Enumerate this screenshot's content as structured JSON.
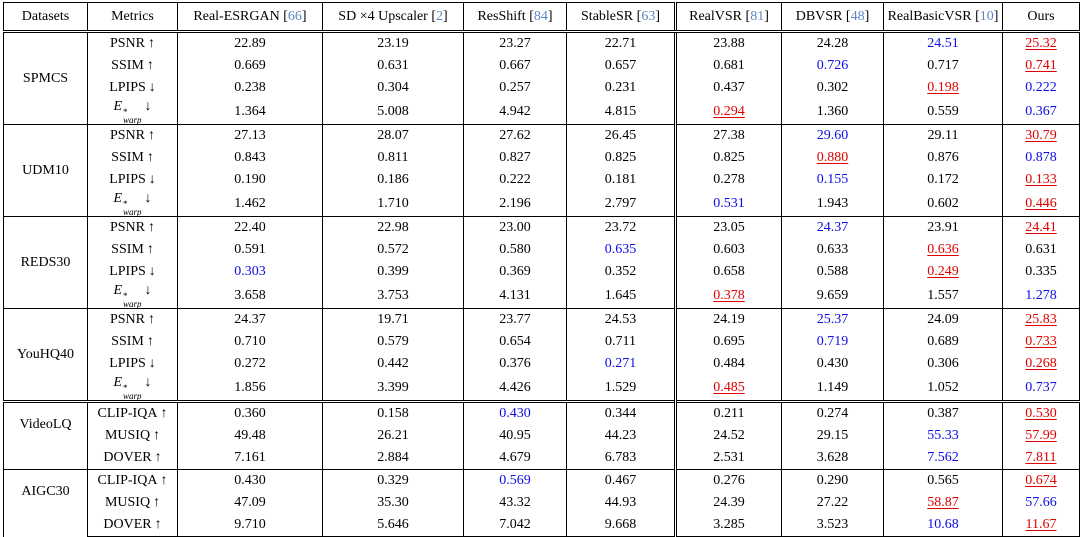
{
  "colors": {
    "best": "#e10000",
    "second": "#0d0de8",
    "cite": "#5c87c5",
    "text": "#000000",
    "border": "#000000"
  },
  "header": {
    "datasets_label": "Datasets",
    "metrics_label": "Metrics",
    "methods": [
      {
        "name": "Real-ESRGAN",
        "cite": "66"
      },
      {
        "name": "SD ×4 Upscaler",
        "cite": "2"
      },
      {
        "name": "ResShift",
        "cite": "84"
      },
      {
        "name": "StableSR",
        "cite": "63"
      },
      {
        "name": "RealVSR",
        "cite": "81"
      },
      {
        "name": "DBVSR",
        "cite": "48"
      },
      {
        "name": "RealBasicVSR",
        "cite": "10"
      },
      {
        "name": "Ours",
        "cite": null
      }
    ]
  },
  "mark_legend": {
    "best": "red underlined = best",
    "second": "blue = second best"
  },
  "groups": [
    {
      "dataset": "SPMCS",
      "section_start": false,
      "rows": [
        {
          "metric": {
            "name": "PSNR",
            "arrow": "↑"
          },
          "values": [
            "22.89",
            "23.19",
            "23.27",
            "22.71",
            "23.88",
            "24.28",
            "24.51",
            "25.32"
          ],
          "marks": [
            "",
            "",
            "",
            "",
            "",
            "",
            "second",
            "best"
          ]
        },
        {
          "metric": {
            "name": "SSIM",
            "arrow": "↑"
          },
          "values": [
            "0.669",
            "0.631",
            "0.667",
            "0.657",
            "0.681",
            "0.726",
            "0.717",
            "0.741"
          ],
          "marks": [
            "",
            "",
            "",
            "",
            "",
            "second",
            "",
            "best"
          ]
        },
        {
          "metric": {
            "name": "LPIPS",
            "arrow": "↓"
          },
          "values": [
            "0.238",
            "0.304",
            "0.257",
            "0.231",
            "0.437",
            "0.302",
            "0.198",
            "0.222"
          ],
          "marks": [
            "",
            "",
            "",
            "",
            "",
            "",
            "best",
            "second"
          ]
        },
        {
          "metric": {
            "name": "E",
            "sup": "*",
            "sub": "warp",
            "arrow": "↓",
            "italic": true
          },
          "values": [
            "1.364",
            "5.008",
            "4.942",
            "4.815",
            "0.294",
            "1.360",
            "0.559",
            "0.367"
          ],
          "marks": [
            "",
            "",
            "",
            "",
            "best",
            "",
            "",
            "second"
          ]
        }
      ]
    },
    {
      "dataset": "UDM10",
      "section_start": false,
      "rows": [
        {
          "metric": {
            "name": "PSNR",
            "arrow": "↑"
          },
          "values": [
            "27.13",
            "28.07",
            "27.62",
            "26.45",
            "27.38",
            "29.60",
            "29.11",
            "30.79"
          ],
          "marks": [
            "",
            "",
            "",
            "",
            "",
            "second",
            "",
            "best"
          ]
        },
        {
          "metric": {
            "name": "SSIM",
            "arrow": "↑"
          },
          "values": [
            "0.843",
            "0.811",
            "0.827",
            "0.825",
            "0.825",
            "0.880",
            "0.876",
            "0.878"
          ],
          "marks": [
            "",
            "",
            "",
            "",
            "",
            "best",
            "",
            "second"
          ]
        },
        {
          "metric": {
            "name": "LPIPS",
            "arrow": "↓"
          },
          "values": [
            "0.190",
            "0.186",
            "0.222",
            "0.181",
            "0.278",
            "0.155",
            "0.172",
            "0.133"
          ],
          "marks": [
            "",
            "",
            "",
            "",
            "",
            "second",
            "",
            "best"
          ]
        },
        {
          "metric": {
            "name": "E",
            "sup": "*",
            "sub": "warp",
            "arrow": "↓",
            "italic": true
          },
          "values": [
            "1.462",
            "1.710",
            "2.196",
            "2.797",
            "0.531",
            "1.943",
            "0.602",
            "0.446"
          ],
          "marks": [
            "",
            "",
            "",
            "",
            "second",
            "",
            "",
            "best"
          ]
        }
      ]
    },
    {
      "dataset": "REDS30",
      "section_start": false,
      "rows": [
        {
          "metric": {
            "name": "PSNR",
            "arrow": "↑"
          },
          "values": [
            "22.40",
            "22.98",
            "23.00",
            "23.72",
            "23.05",
            "24.37",
            "23.91",
            "24.41"
          ],
          "marks": [
            "",
            "",
            "",
            "",
            "",
            "second",
            "",
            "best"
          ]
        },
        {
          "metric": {
            "name": "SSIM",
            "arrow": "↑"
          },
          "values": [
            "0.591",
            "0.572",
            "0.580",
            "0.635",
            "0.603",
            "0.633",
            "0.636",
            "0.631"
          ],
          "marks": [
            "",
            "",
            "",
            "second",
            "",
            "",
            "best",
            ""
          ]
        },
        {
          "metric": {
            "name": "LPIPS",
            "arrow": "↓"
          },
          "values": [
            "0.303",
            "0.399",
            "0.369",
            "0.352",
            "0.658",
            "0.588",
            "0.249",
            "0.335"
          ],
          "marks": [
            "second",
            "",
            "",
            "",
            "",
            "",
            "best",
            ""
          ]
        },
        {
          "metric": {
            "name": "E",
            "sup": "*",
            "sub": "warp",
            "arrow": "↓",
            "italic": true
          },
          "values": [
            "3.658",
            "3.753",
            "4.131",
            "1.645",
            "0.378",
            "9.659",
            "1.557",
            "1.278"
          ],
          "marks": [
            "",
            "",
            "",
            "",
            "best",
            "",
            "",
            "second"
          ]
        }
      ]
    },
    {
      "dataset": "YouHQ40",
      "section_start": false,
      "rows": [
        {
          "metric": {
            "name": "PSNR",
            "arrow": "↑"
          },
          "values": [
            "24.37",
            "19.71",
            "23.77",
            "24.53",
            "24.19",
            "25.37",
            "24.09",
            "25.83"
          ],
          "marks": [
            "",
            "",
            "",
            "",
            "",
            "second",
            "",
            "best"
          ]
        },
        {
          "metric": {
            "name": "SSIM",
            "arrow": "↑"
          },
          "values": [
            "0.710",
            "0.579",
            "0.654",
            "0.711",
            "0.695",
            "0.719",
            "0.689",
            "0.733"
          ],
          "marks": [
            "",
            "",
            "",
            "",
            "",
            "second",
            "",
            "best"
          ]
        },
        {
          "metric": {
            "name": "LPIPS",
            "arrow": "↓"
          },
          "values": [
            "0.272",
            "0.442",
            "0.376",
            "0.271",
            "0.484",
            "0.430",
            "0.306",
            "0.268"
          ],
          "marks": [
            "",
            "",
            "",
            "second",
            "",
            "",
            "",
            "best"
          ]
        },
        {
          "metric": {
            "name": "E",
            "sup": "*",
            "sub": "warp",
            "arrow": "↓",
            "italic": true
          },
          "values": [
            "1.856",
            "3.399",
            "4.426",
            "1.529",
            "0.485",
            "1.149",
            "1.052",
            "0.737"
          ],
          "marks": [
            "",
            "",
            "",
            "",
            "best",
            "",
            "",
            "second"
          ]
        }
      ]
    },
    {
      "dataset": "VideoLQ",
      "section_start": true,
      "rows": [
        {
          "metric": {
            "name": "CLIP-IQA",
            "arrow": "↑"
          },
          "values": [
            "0.360",
            "0.158",
            "0.430",
            "0.344",
            "0.211",
            "0.274",
            "0.387",
            "0.530"
          ],
          "marks": [
            "",
            "",
            "second",
            "",
            "",
            "",
            "",
            "best"
          ]
        },
        {
          "metric": {
            "name": "MUSIQ",
            "arrow": "↑"
          },
          "values": [
            "49.48",
            "26.21",
            "40.95",
            "44.23",
            "24.52",
            "29.15",
            "55.33",
            "57.99"
          ],
          "marks": [
            "",
            "",
            "",
            "",
            "",
            "",
            "second",
            "best"
          ]
        },
        {
          "metric": {
            "name": "DOVER",
            "arrow": "↑"
          },
          "values": [
            "7.161",
            "2.884",
            "4.679",
            "6.783",
            "2.531",
            "3.628",
            "7.562",
            "7.811"
          ],
          "marks": [
            "",
            "",
            "",
            "",
            "",
            "",
            "second",
            "best"
          ]
        }
      ]
    },
    {
      "dataset": "AIGC30",
      "section_start": false,
      "rows": [
        {
          "metric": {
            "name": "CLIP-IQA",
            "arrow": "↑"
          },
          "values": [
            "0.430",
            "0.329",
            "0.569",
            "0.467",
            "0.276",
            "0.290",
            "0.565",
            "0.674"
          ],
          "marks": [
            "",
            "",
            "second",
            "",
            "",
            "",
            "",
            "best"
          ]
        },
        {
          "metric": {
            "name": "MUSIQ",
            "arrow": "↑"
          },
          "values": [
            "47.09",
            "35.30",
            "43.32",
            "44.93",
            "24.39",
            "27.22",
            "58.87",
            "57.66"
          ],
          "marks": [
            "",
            "",
            "",
            "",
            "",
            "",
            "best",
            "second"
          ]
        },
        {
          "metric": {
            "name": "DOVER",
            "arrow": "↑"
          },
          "values": [
            "9.710",
            "5.646",
            "7.042",
            "9.668",
            "3.285",
            "3.523",
            "10.68",
            "11.67"
          ],
          "marks": [
            "",
            "",
            "",
            "",
            "",
            "",
            "second",
            "best"
          ]
        }
      ]
    }
  ]
}
